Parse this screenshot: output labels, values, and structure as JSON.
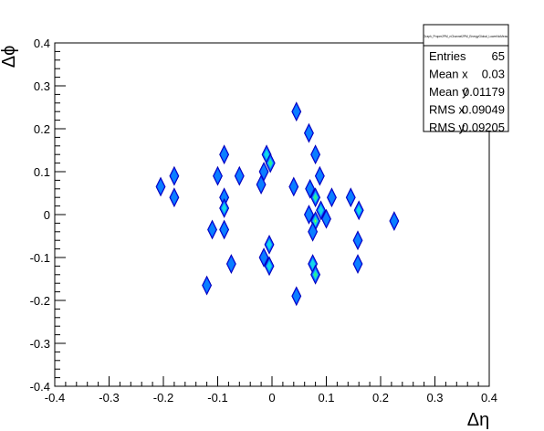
{
  "chart_data": {
    "type": "heatmap",
    "xlabel": "Δη",
    "ylabel": "Δϕ",
    "xlim": [
      -0.4,
      0.4
    ],
    "ylim": [
      -0.4,
      0.4
    ],
    "x_ticks": [
      "-0.4",
      "-0.3",
      "-0.2",
      "-0.1",
      "0",
      "0.1",
      "0.2",
      "0.3",
      "0.4"
    ],
    "y_ticks": [
      "-0.4",
      "-0.3",
      "-0.2",
      "-0.1",
      "0",
      "0.1",
      "0.2",
      "0.3",
      "0.4"
    ],
    "grid": false,
    "palette": [
      "#0a1aff",
      "#0a7fff",
      "#13d8e8",
      "#2ff08a",
      "#d8f020"
    ],
    "blobs": [
      {
        "x": 0.045,
        "y": 0.24,
        "level": 1
      },
      {
        "x": 0.068,
        "y": 0.19,
        "level": 1
      },
      {
        "x": 0.08,
        "y": 0.14,
        "level": 1
      },
      {
        "x": -0.088,
        "y": 0.14,
        "level": 1
      },
      {
        "x": -0.01,
        "y": 0.14,
        "level": 2
      },
      {
        "x": -0.003,
        "y": 0.12,
        "level": 3
      },
      {
        "x": -0.015,
        "y": 0.1,
        "level": 1
      },
      {
        "x": -0.02,
        "y": 0.07,
        "level": 1
      },
      {
        "x": -0.1,
        "y": 0.09,
        "level": 1
      },
      {
        "x": -0.06,
        "y": 0.09,
        "level": 1
      },
      {
        "x": -0.18,
        "y": 0.09,
        "level": 1
      },
      {
        "x": -0.205,
        "y": 0.065,
        "level": 1
      },
      {
        "x": -0.18,
        "y": 0.04,
        "level": 1
      },
      {
        "x": 0.088,
        "y": 0.09,
        "level": 1
      },
      {
        "x": 0.04,
        "y": 0.065,
        "level": 1
      },
      {
        "x": 0.07,
        "y": 0.06,
        "level": 1
      },
      {
        "x": 0.08,
        "y": 0.04,
        "level": 3
      },
      {
        "x": 0.11,
        "y": 0.04,
        "level": 1
      },
      {
        "x": -0.088,
        "y": 0.04,
        "level": 1
      },
      {
        "x": -0.088,
        "y": 0.015,
        "level": 2
      },
      {
        "x": 0.068,
        "y": 0.0,
        "level": 1
      },
      {
        "x": 0.08,
        "y": -0.015,
        "level": 4
      },
      {
        "x": 0.09,
        "y": 0.01,
        "level": 2
      },
      {
        "x": 0.1,
        "y": -0.01,
        "level": 1
      },
      {
        "x": 0.075,
        "y": -0.04,
        "level": 1
      },
      {
        "x": 0.145,
        "y": 0.04,
        "level": 1
      },
      {
        "x": 0.16,
        "y": 0.01,
        "level": 2
      },
      {
        "x": 0.158,
        "y": -0.06,
        "level": 1
      },
      {
        "x": 0.158,
        "y": -0.115,
        "level": 1
      },
      {
        "x": 0.225,
        "y": -0.015,
        "level": 1
      },
      {
        "x": -0.11,
        "y": -0.035,
        "level": 1
      },
      {
        "x": -0.088,
        "y": -0.035,
        "level": 1
      },
      {
        "x": -0.005,
        "y": -0.07,
        "level": 2
      },
      {
        "x": -0.015,
        "y": -0.1,
        "level": 1
      },
      {
        "x": -0.005,
        "y": -0.12,
        "level": 2
      },
      {
        "x": 0.075,
        "y": -0.115,
        "level": 2
      },
      {
        "x": 0.08,
        "y": -0.14,
        "level": 3
      },
      {
        "x": -0.075,
        "y": -0.115,
        "level": 1
      },
      {
        "x": -0.12,
        "y": -0.165,
        "level": 1
      },
      {
        "x": 0.045,
        "y": -0.19,
        "level": 1
      }
    ]
  },
  "stats_box": {
    "title": "Graph_Proper2PM_nChannel2PM_EnergyGlobal_LowerNoMeas",
    "rows": [
      {
        "label": "Entries",
        "value": "65"
      },
      {
        "label": "Mean x",
        "value": "0.03"
      },
      {
        "label": "Mean y",
        "value": "0.01179"
      },
      {
        "label": "RMS x",
        "value": "0.09049"
      },
      {
        "label": "RMS y",
        "value": "0.09205"
      }
    ]
  }
}
